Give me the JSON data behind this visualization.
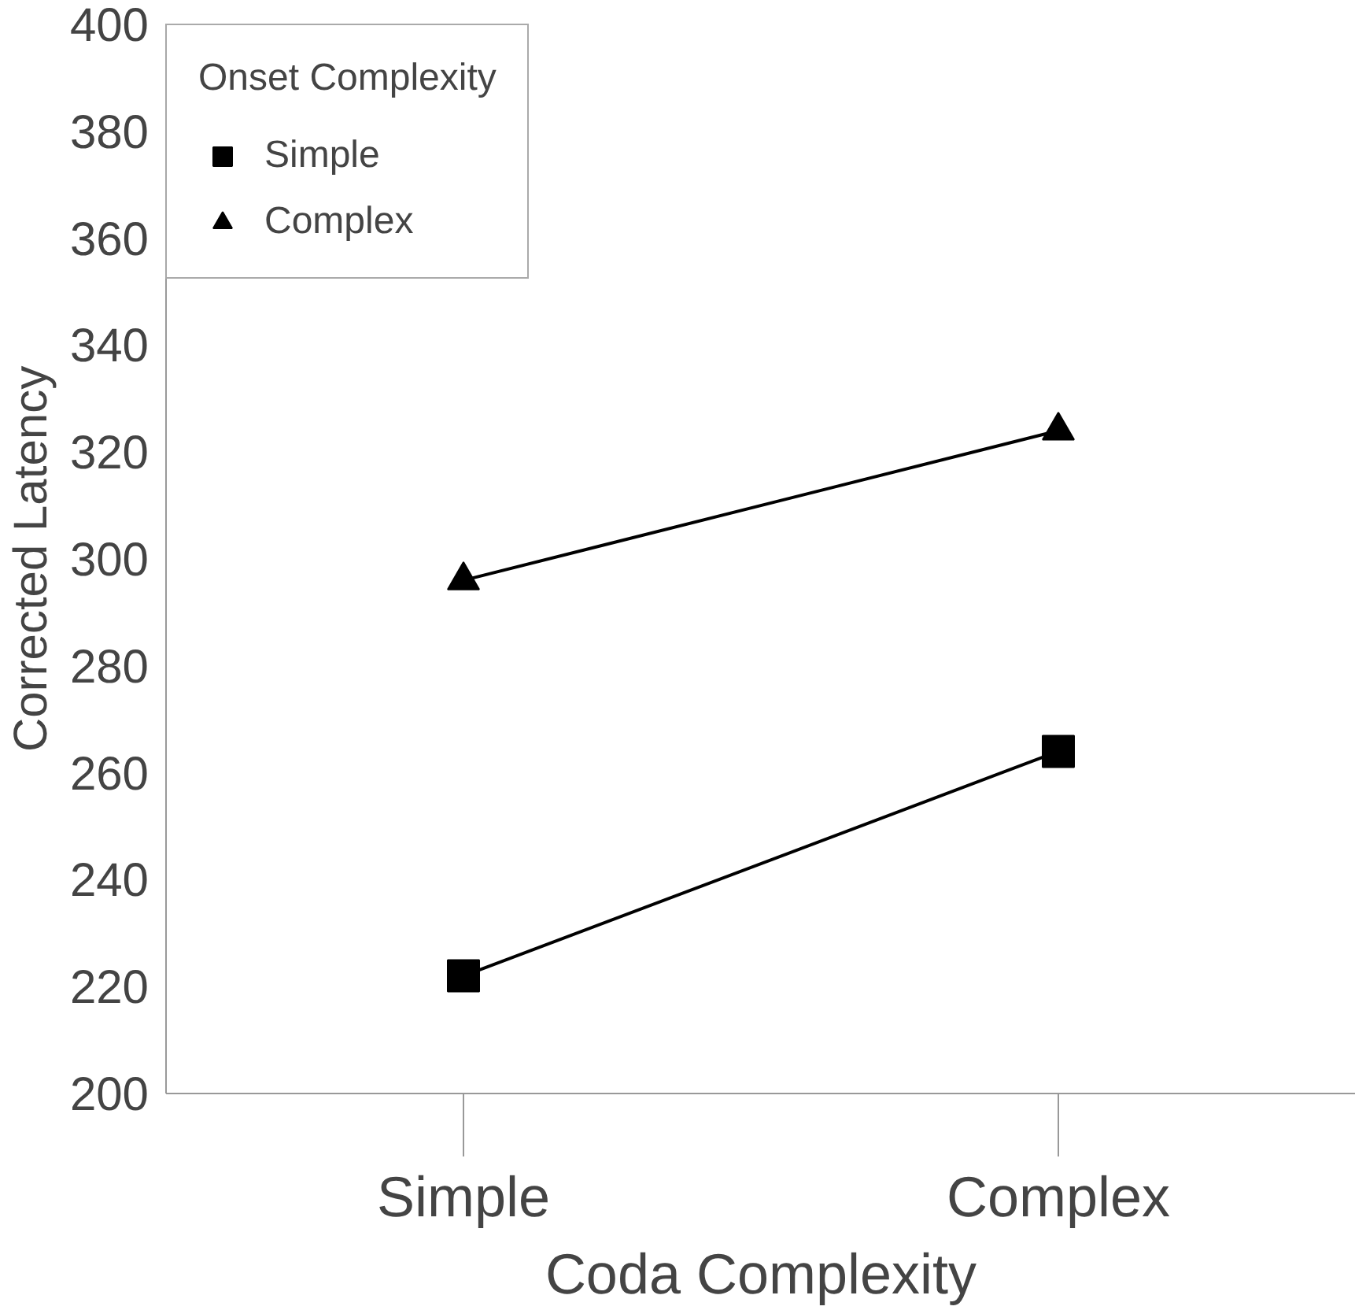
{
  "chart_data": {
    "type": "line",
    "xlabel": "Coda Complexity",
    "ylabel": "Corrected Latency",
    "legend_title": "Onset Complexity",
    "categories": [
      "Simple",
      "Complex"
    ],
    "series": [
      {
        "name": "Simple",
        "color": "#000000",
        "marker": "square",
        "values": [
          222,
          264
        ]
      },
      {
        "name": "Complex",
        "color": "#000000",
        "marker": "triangle",
        "values": [
          296,
          324
        ]
      }
    ],
    "ylim": [
      200,
      400
    ],
    "yticks": [
      200,
      220,
      240,
      260,
      280,
      300,
      320,
      340,
      360,
      380,
      400
    ],
    "grid": false,
    "legend": "top left",
    "line_style": "solid"
  }
}
